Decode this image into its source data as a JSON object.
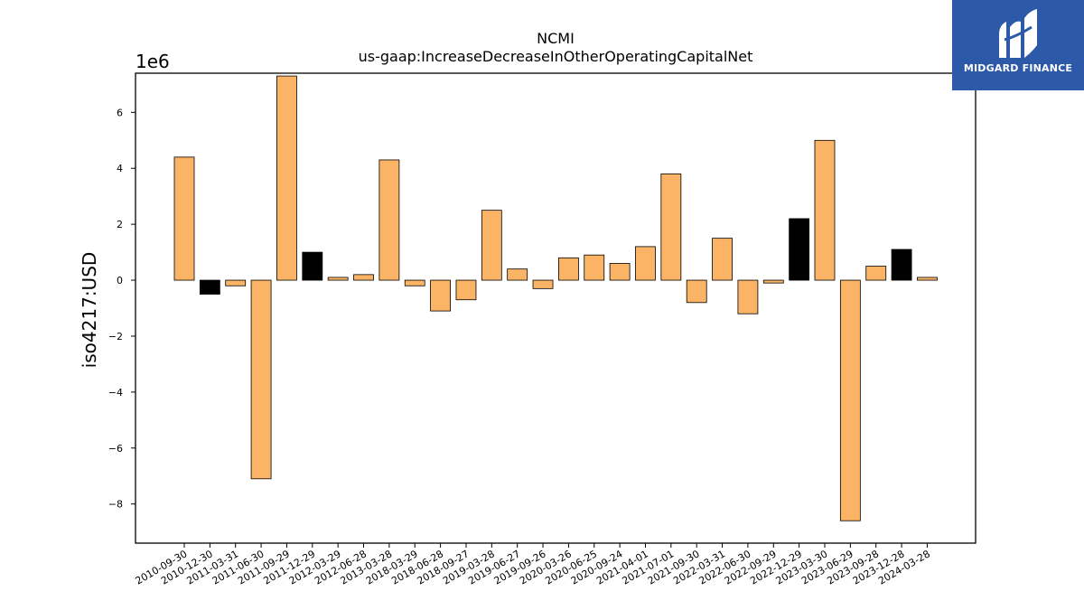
{
  "chart_data": {
    "type": "bar",
    "title": "NCMI",
    "subtitle": "us-gaap:IncreaseDecreaseInOtherOperatingCapitalNet",
    "ylabel": "iso4217:USD",
    "xlabel": "",
    "y_scale_label": "1e6",
    "ylim": [
      -9.4,
      7.4
    ],
    "yticks": [
      -8,
      -6,
      -4,
      -2,
      0,
      2,
      4,
      6
    ],
    "ytick_labels": [
      "−8",
      "−6",
      "−4",
      "−2",
      "0",
      "2",
      "4",
      "6"
    ],
    "grid": false,
    "categories": [
      "2010-09-30",
      "2010-12-30",
      "2011-03-31",
      "2011-06-30",
      "2011-09-29",
      "2011-12-29",
      "2012-03-29",
      "2012-06-28",
      "2013-03-28",
      "2018-03-29",
      "2018-06-28",
      "2018-09-27",
      "2019-03-28",
      "2019-06-27",
      "2019-09-26",
      "2020-03-26",
      "2020-06-25",
      "2020-09-24",
      "2021-04-01",
      "2021-07-01",
      "2021-09-30",
      "2022-03-31",
      "2022-06-30",
      "2022-09-29",
      "2022-12-29",
      "2023-03-30",
      "2023-06-29",
      "2023-09-28",
      "2023-12-28",
      "2024-03-28"
    ],
    "values": [
      4.4,
      -0.5,
      -0.2,
      -7.1,
      7.3,
      1.0,
      0.1,
      0.2,
      4.3,
      -0.2,
      -1.1,
      -0.7,
      2.5,
      0.4,
      -0.3,
      0.8,
      0.9,
      0.6,
      1.2,
      3.8,
      -0.8,
      1.5,
      -1.2,
      -0.1,
      2.2,
      5.0,
      -8.6,
      0.5,
      1.1,
      0.1
    ],
    "bar_colors": [
      "#fbb466",
      "#000000",
      "#fbb466",
      "#fbb466",
      "#fbb466",
      "#000000",
      "#fbb466",
      "#fbb466",
      "#fbb466",
      "#fbb466",
      "#fbb466",
      "#fbb466",
      "#fbb466",
      "#fbb466",
      "#fbb466",
      "#fbb466",
      "#fbb466",
      "#fbb466",
      "#fbb466",
      "#fbb466",
      "#fbb466",
      "#fbb466",
      "#fbb466",
      "#fbb466",
      "#000000",
      "#fbb466",
      "#fbb466",
      "#fbb466",
      "#000000",
      "#fbb466"
    ]
  },
  "logo": {
    "text": "MIDGARD FINANCE",
    "background": "#2c5aa8"
  }
}
